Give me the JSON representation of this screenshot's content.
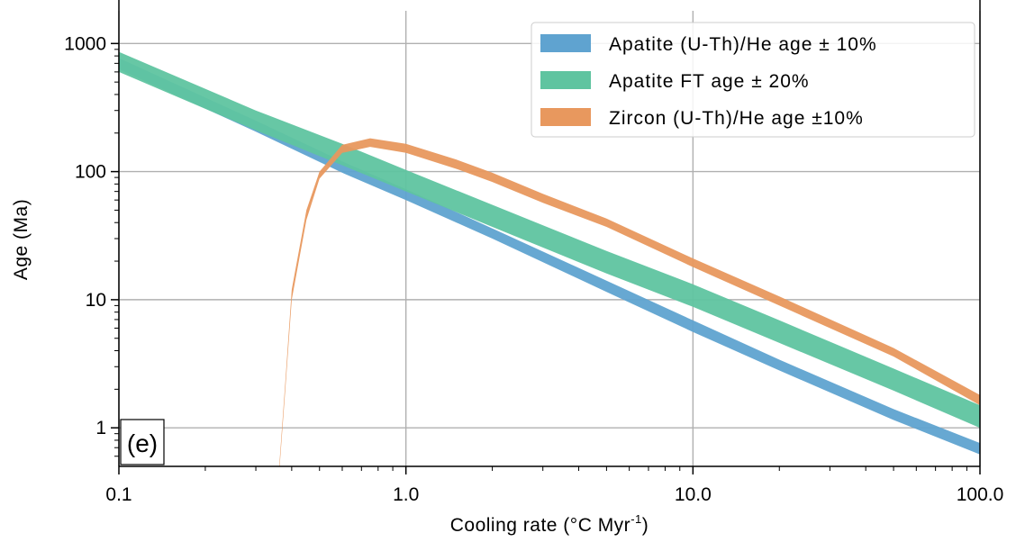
{
  "chart_data": {
    "type": "area",
    "title": "",
    "xlabel": "Cooling rate (°C Myr",
    "xlabel_sup": "-1",
    "xlabel_end": ")",
    "ylabel": "Age (Ma)",
    "xscale": "log",
    "yscale": "log",
    "xlim": [
      0.1,
      100
    ],
    "ylim": [
      0.5,
      1800
    ],
    "x_ticks": [
      0.1,
      1.0,
      10.0,
      100.0
    ],
    "x_tick_labels": [
      "0.1",
      "1.0",
      "10.0",
      "100.0"
    ],
    "y_ticks": [
      1,
      10,
      100,
      1000
    ],
    "y_tick_labels": [
      "1",
      "10",
      "100",
      "1000"
    ],
    "grid": true,
    "legend_position": "top-right",
    "panel_label": "(e)",
    "series": [
      {
        "name": "Apatite (U-Th)/He age ± 10%",
        "color": "#5fa3d0",
        "x": [
          0.1,
          0.3,
          0.6,
          1.0,
          2.0,
          5.0,
          10.0,
          20.0,
          50.0,
          100.0
        ],
        "low": [
          630,
          205,
          98,
          60,
          30,
          11.5,
          5.6,
          2.8,
          1.15,
          0.62
        ],
        "high": [
          770,
          250,
          120,
          73,
          36,
          14.1,
          6.9,
          3.4,
          1.4,
          0.76
        ]
      },
      {
        "name": "Apatite FT age ± 20%",
        "color": "#5fc4a0",
        "x": [
          0.1,
          0.3,
          0.6,
          1.0,
          2.0,
          5.0,
          10.0,
          20.0,
          50.0,
          100.0
        ],
        "low": [
          600,
          210,
          112,
          70,
          37,
          16,
          8.8,
          4.6,
          1.95,
          1.0
        ],
        "high": [
          860,
          300,
          165,
          103,
          55,
          24,
          13.2,
          6.9,
          2.9,
          1.5
        ]
      },
      {
        "name": "Zircon (U-Th)/He age ±10%",
        "color": "#e8985e",
        "x": [
          0.362,
          0.38,
          0.4,
          0.45,
          0.5,
          0.6,
          0.75,
          1.0,
          1.5,
          2.0,
          3.0,
          5.0,
          10.0,
          20.0,
          50.0,
          100.0
        ],
        "low": [
          0.45,
          2.0,
          10,
          42,
          88,
          140,
          156,
          140,
          105,
          83,
          57,
          37,
          18,
          9.0,
          3.6,
          1.5
        ],
        "high": [
          0.5,
          2.3,
          12,
          50,
          100,
          162,
          182,
          165,
          124,
          98,
          67,
          43,
          21,
          10.6,
          4.2,
          1.8
        ]
      }
    ]
  }
}
